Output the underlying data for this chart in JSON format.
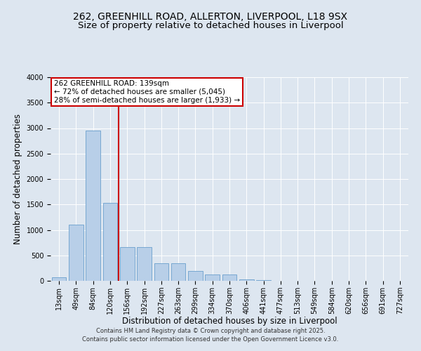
{
  "title_line1": "262, GREENHILL ROAD, ALLERTON, LIVERPOOL, L18 9SX",
  "title_line2": "Size of property relative to detached houses in Liverpool",
  "xlabel": "Distribution of detached houses by size in Liverpool",
  "ylabel": "Number of detached properties",
  "categories": [
    "13sqm",
    "49sqm",
    "84sqm",
    "120sqm",
    "156sqm",
    "192sqm",
    "227sqm",
    "263sqm",
    "299sqm",
    "334sqm",
    "370sqm",
    "406sqm",
    "441sqm",
    "477sqm",
    "513sqm",
    "549sqm",
    "584sqm",
    "620sqm",
    "656sqm",
    "691sqm",
    "727sqm"
  ],
  "values": [
    75,
    1100,
    2950,
    1530,
    660,
    660,
    340,
    340,
    190,
    120,
    120,
    30,
    20,
    0,
    0,
    0,
    0,
    0,
    0,
    0,
    0
  ],
  "bar_color": "#b8cfe8",
  "bar_edge_color": "#6a9fcc",
  "vline_color": "#cc0000",
  "vline_x_index": 3,
  "annotation_text": "262 GREENHILL ROAD: 139sqm\n← 72% of detached houses are smaller (5,045)\n28% of semi-detached houses are larger (1,933) →",
  "annotation_box_edgecolor": "#cc0000",
  "annotation_facecolor": "#ffffff",
  "ylim": [
    0,
    4000
  ],
  "yticks": [
    0,
    500,
    1000,
    1500,
    2000,
    2500,
    3000,
    3500,
    4000
  ],
  "bg_color": "#dde6f0",
  "plot_bg_color": "#dde6f0",
  "grid_color": "#ffffff",
  "footer_line1": "Contains HM Land Registry data © Crown copyright and database right 2025.",
  "footer_line2": "Contains public sector information licensed under the Open Government Licence v3.0.",
  "title_fontsize": 10,
  "subtitle_fontsize": 9.5,
  "axis_label_fontsize": 8.5,
  "tick_fontsize": 7,
  "annotation_fontsize": 7.5,
  "footer_fontsize": 6
}
